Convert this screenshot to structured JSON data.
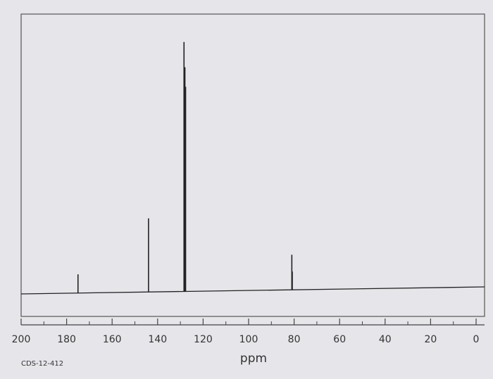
{
  "chart_data": {
    "type": "spectrum",
    "label": "CDS-12-412",
    "xlabel": "ppm",
    "xlim": [
      200,
      0
    ],
    "xticks": [
      200,
      180,
      160,
      140,
      120,
      100,
      80,
      60,
      40,
      20,
      0
    ],
    "minor_xticks": [
      190,
      170,
      150,
      130,
      110,
      90,
      70,
      50,
      30,
      10
    ],
    "ylim": [
      0,
      100
    ],
    "color": "#222222",
    "x": [
      175,
      144,
      128.4,
      128.0,
      127.7,
      81.0,
      80.8
    ],
    "values": [
      7,
      27,
      90,
      81,
      74,
      14,
      8
    ]
  }
}
